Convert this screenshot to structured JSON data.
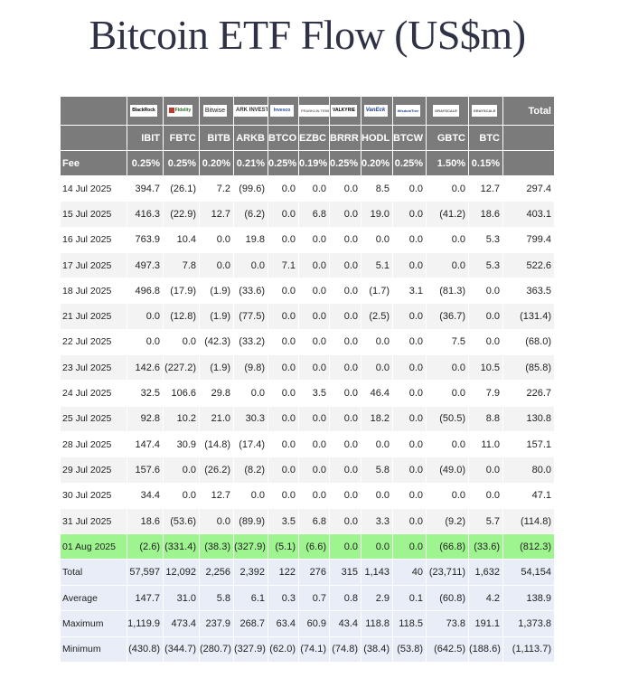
{
  "title": "Bitcoin ETF Flow (US$m)",
  "columns": [
    {
      "logo": "BlackRock",
      "logo_icon": "blackrock-logo",
      "ticker": "IBIT",
      "fee": "0.25%"
    },
    {
      "logo": "Fidelity",
      "logo_icon": "fidelity-logo",
      "ticker": "FBTC",
      "fee": "0.25%"
    },
    {
      "logo": "Bitwise",
      "logo_icon": "bitwise-logo",
      "ticker": "BITB",
      "fee": "0.20%"
    },
    {
      "logo": "ARK INVEST",
      "logo_icon": "ark-logo",
      "ticker": "ARKB",
      "fee": "0.21%"
    },
    {
      "logo": "Invesco",
      "logo_icon": "invesco-logo",
      "ticker": "BTCO",
      "fee": "0.25%"
    },
    {
      "logo": "FRANKLIN TEMPLETON",
      "logo_icon": "franklin-logo",
      "ticker": "EZBC",
      "fee": "0.19%"
    },
    {
      "logo": "VALKYRIE",
      "logo_icon": "valkyrie-logo",
      "ticker": "BRRR",
      "fee": "0.25%"
    },
    {
      "logo": "VanEck",
      "logo_icon": "vaneck-logo",
      "ticker": "HODL",
      "fee": "0.20%"
    },
    {
      "logo": "WisdomTree",
      "logo_icon": "wisdomtree-logo",
      "ticker": "BTCW",
      "fee": "0.25%"
    },
    {
      "logo": "GRAYSCALE",
      "logo_icon": "grayscale-logo",
      "ticker": "GBTC",
      "fee": "1.50%"
    },
    {
      "logo": "GRAYSCALE",
      "logo_icon": "grayscale-logo",
      "ticker": "BTC",
      "fee": "0.15%"
    }
  ],
  "total_header": "Total",
  "fee_label": "Fee",
  "rows": [
    {
      "date": "14 Jul 2025",
      "values": [
        "394.7",
        "(26.1)",
        "7.2",
        "(99.6)",
        "0.0",
        "0.0",
        "0.0",
        "8.5",
        "0.0",
        "0.0",
        "12.7"
      ],
      "total": "297.4"
    },
    {
      "date": "15 Jul 2025",
      "values": [
        "416.3",
        "(22.9)",
        "12.7",
        "(6.2)",
        "0.0",
        "6.8",
        "0.0",
        "19.0",
        "0.0",
        "(41.2)",
        "18.6"
      ],
      "total": "403.1"
    },
    {
      "date": "16 Jul 2025",
      "values": [
        "763.9",
        "10.4",
        "0.0",
        "19.8",
        "0.0",
        "0.0",
        "0.0",
        "0.0",
        "0.0",
        "0.0",
        "5.3"
      ],
      "total": "799.4"
    },
    {
      "date": "17 Jul 2025",
      "values": [
        "497.3",
        "7.8",
        "0.0",
        "0.0",
        "7.1",
        "0.0",
        "0.0",
        "5.1",
        "0.0",
        "0.0",
        "5.3"
      ],
      "total": "522.6"
    },
    {
      "date": "18 Jul 2025",
      "values": [
        "496.8",
        "(17.9)",
        "(1.9)",
        "(33.6)",
        "0.0",
        "0.0",
        "0.0",
        "(1.7)",
        "3.1",
        "(81.3)",
        "0.0"
      ],
      "total": "363.5"
    },
    {
      "date": "21 Jul 2025",
      "values": [
        "0.0",
        "(12.8)",
        "(1.9)",
        "(77.5)",
        "0.0",
        "0.0",
        "0.0",
        "(2.5)",
        "0.0",
        "(36.7)",
        "0.0"
      ],
      "total": "(131.4)"
    },
    {
      "date": "22 Jul 2025",
      "values": [
        "0.0",
        "0.0",
        "(42.3)",
        "(33.2)",
        "0.0",
        "0.0",
        "0.0",
        "0.0",
        "0.0",
        "7.5",
        "0.0"
      ],
      "total": "(68.0)"
    },
    {
      "date": "23 Jul 2025",
      "values": [
        "142.6",
        "(227.2)",
        "(1.9)",
        "(9.8)",
        "0.0",
        "0.0",
        "0.0",
        "0.0",
        "0.0",
        "0.0",
        "10.5"
      ],
      "total": "(85.8)"
    },
    {
      "date": "24 Jul 2025",
      "values": [
        "32.5",
        "106.6",
        "29.8",
        "0.0",
        "0.0",
        "3.5",
        "0.0",
        "46.4",
        "0.0",
        "0.0",
        "7.9"
      ],
      "total": "226.7"
    },
    {
      "date": "25 Jul 2025",
      "values": [
        "92.8",
        "10.2",
        "21.0",
        "30.3",
        "0.0",
        "0.0",
        "0.0",
        "18.2",
        "0.0",
        "(50.5)",
        "8.8"
      ],
      "total": "130.8"
    },
    {
      "date": "28 Jul 2025",
      "values": [
        "147.4",
        "30.9",
        "(14.8)",
        "(17.4)",
        "0.0",
        "0.0",
        "0.0",
        "0.0",
        "0.0",
        "0.0",
        "11.0"
      ],
      "total": "157.1"
    },
    {
      "date": "29 Jul 2025",
      "values": [
        "157.6",
        "0.0",
        "(26.2)",
        "(8.2)",
        "0.0",
        "0.0",
        "0.0",
        "5.8",
        "0.0",
        "(49.0)",
        "0.0"
      ],
      "total": "80.0"
    },
    {
      "date": "30 Jul 2025",
      "values": [
        "34.4",
        "0.0",
        "12.7",
        "0.0",
        "0.0",
        "0.0",
        "0.0",
        "0.0",
        "0.0",
        "0.0",
        "0.0"
      ],
      "total": "47.1"
    },
    {
      "date": "31 Jul 2025",
      "values": [
        "18.6",
        "(53.6)",
        "0.0",
        "(89.9)",
        "3.5",
        "6.8",
        "0.0",
        "3.3",
        "0.0",
        "(9.2)",
        "5.7"
      ],
      "total": "(114.8)"
    },
    {
      "date": "01 Aug 2025",
      "highlight": true,
      "values": [
        "(2.6)",
        "(331.4)",
        "(38.3)",
        "(327.9)",
        "(5.1)",
        "(6.6)",
        "0.0",
        "0.0",
        "0.0",
        "(66.8)",
        "(33.6)"
      ],
      "total": "(812.3)"
    }
  ],
  "summary": [
    {
      "label": "Total",
      "values": [
        "57,597",
        "12,092",
        "2,256",
        "2,392",
        "122",
        "276",
        "315",
        "1,143",
        "40",
        "(23,711)",
        "1,632"
      ],
      "total": "54,154"
    },
    {
      "label": "Average",
      "values": [
        "147.7",
        "31.0",
        "5.8",
        "6.1",
        "0.3",
        "0.7",
        "0.8",
        "2.9",
        "0.1",
        "(60.8)",
        "4.2"
      ],
      "total": "138.9"
    },
    {
      "label": "Maximum",
      "values": [
        "1,119.9",
        "473.4",
        "237.9",
        "268.7",
        "63.4",
        "60.9",
        "43.4",
        "118.8",
        "118.5",
        "73.8",
        "191.1"
      ],
      "total": "1,373.8"
    },
    {
      "label": "Minimum",
      "values": [
        "(430.8)",
        "(344.7)",
        "(280.7)",
        "(327.9)",
        "(62.0)",
        "(74.1)",
        "(74.8)",
        "(38.4)",
        "(53.8)",
        "(642.5)",
        "(188.6)"
      ],
      "total": "(1,113.7)"
    }
  ],
  "colors": {
    "header_bg": "#7b7b7b",
    "negative": "#d01818",
    "highlight_row": "#9ef58f",
    "summary_bg": "#e9edf7"
  }
}
